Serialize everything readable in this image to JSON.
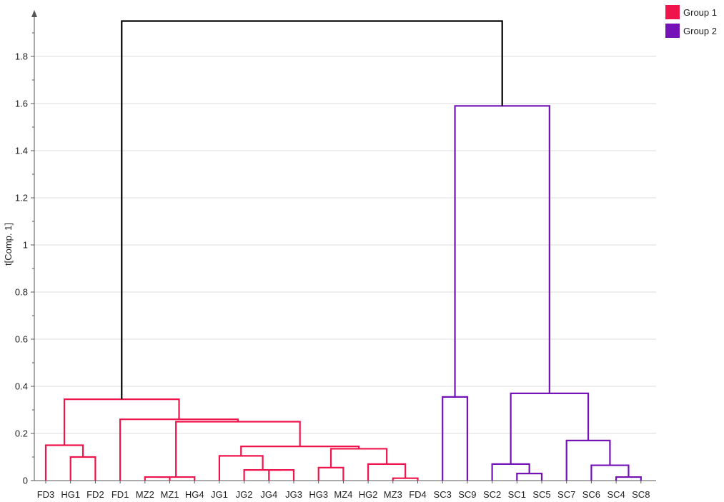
{
  "chart_data": {
    "type": "dendrogram",
    "ylabel": "t[Comp. 1]",
    "ylim": [
      0,
      1.95
    ],
    "yticks": [
      "0",
      "0.2",
      "0.4",
      "0.6",
      "0.8",
      "1",
      "1.2",
      "1.4",
      "1.6",
      "1.8"
    ],
    "grid": true,
    "legend_position": "top-right",
    "leaves": [
      "FD3",
      "HG1",
      "FD2",
      "FD1",
      "MZ2",
      "MZ1",
      "HG4",
      "JG1",
      "JG2",
      "JG4",
      "JG3",
      "HG3",
      "MZ4",
      "HG2",
      "MZ3",
      "FD4",
      "SC3",
      "SC9",
      "SC2",
      "SC1",
      "SC5",
      "SC7",
      "SC6",
      "SC4",
      "SC8"
    ],
    "groups": [
      {
        "name": "Group 1",
        "color": "#f0144c"
      },
      {
        "name": "Group 2",
        "color": "#7412b8"
      }
    ],
    "root_color": "#000000",
    "merges": [
      {
        "left": "HG1",
        "right": "FD2",
        "height": 0.1,
        "group": 0
      },
      {
        "left": "FD3",
        "right": 0,
        "height": 0.15,
        "group": 0
      },
      {
        "left": "MZ2",
        "right": "MZ1",
        "height": 0.015,
        "group": 0
      },
      {
        "left": 2,
        "right": "HG4",
        "height": 0.015,
        "group": 0
      },
      {
        "left": "JG4",
        "right": "JG3",
        "height": 0.045,
        "group": 0
      },
      {
        "left": "JG2",
        "right": 4,
        "height": 0.045,
        "group": 0
      },
      {
        "left": "JG1",
        "right": 5,
        "height": 0.105,
        "group": 0
      },
      {
        "left": "HG3",
        "right": "MZ4",
        "height": 0.055,
        "group": 0
      },
      {
        "left": "MZ3",
        "right": "FD4",
        "height": 0.01,
        "group": 0
      },
      {
        "left": "HG2",
        "right": 8,
        "height": 0.07,
        "group": 0
      },
      {
        "left": 7,
        "right": 9,
        "height": 0.135,
        "group": 0
      },
      {
        "left": 6,
        "right": 10,
        "height": 0.145,
        "group": 0
      },
      {
        "left": 3,
        "right": 11,
        "height": 0.25,
        "group": 0
      },
      {
        "left": "FD1",
        "right": 12,
        "height": 0.26,
        "group": 0
      },
      {
        "left": 1,
        "right": 13,
        "height": 0.345,
        "group": 0
      },
      {
        "left": "SC3",
        "right": "SC9",
        "height": 0.355,
        "group": 1
      },
      {
        "left": "SC1",
        "right": "SC5",
        "height": 0.03,
        "group": 1
      },
      {
        "left": "SC2",
        "right": 16,
        "height": 0.07,
        "group": 1
      },
      {
        "left": "SC4",
        "right": "SC8",
        "height": 0.015,
        "group": 1
      },
      {
        "left": "SC6",
        "right": 18,
        "height": 0.065,
        "group": 1
      },
      {
        "left": "SC7",
        "right": 19,
        "height": 0.17,
        "group": 1
      },
      {
        "left": 17,
        "right": 20,
        "height": 0.37,
        "group": 1
      },
      {
        "left": 15,
        "right": 21,
        "height": 1.59,
        "group": 1
      },
      {
        "left": 14,
        "right": 22,
        "height": 1.95,
        "group": -1
      }
    ]
  }
}
